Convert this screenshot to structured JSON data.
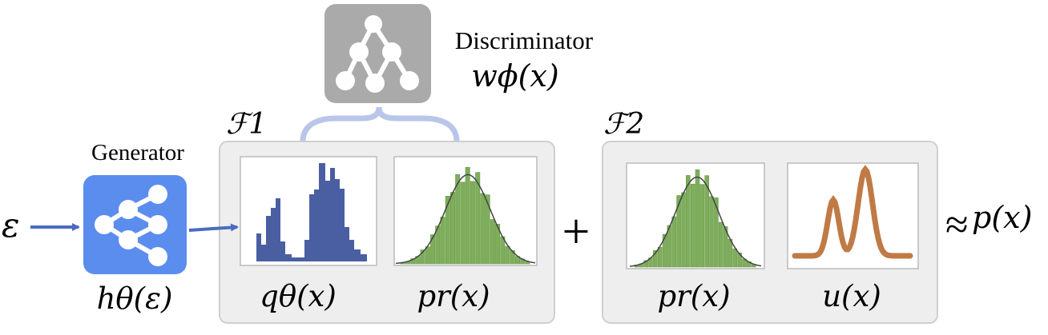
{
  "generator": {
    "title": "Generator",
    "output_label": "hθ(ε)",
    "icon": "neural-network-icon",
    "color": "#5b8def"
  },
  "input": {
    "symbol": "ε"
  },
  "discriminator": {
    "title": "Discriminator",
    "function_label": "wϕ(x)",
    "icon": "neural-network-icon",
    "color": "#aaaaaa",
    "brace_color": "#b9c6ea"
  },
  "family_1": {
    "label": "ℱ1",
    "plots": [
      {
        "label": "qθ(x)",
        "kind": "histogram",
        "color": "#4a5fa2"
      },
      {
        "label": "pr(x)",
        "kind": "histogram-with-density",
        "color": "#7eae5b"
      }
    ]
  },
  "operator": "+",
  "family_2": {
    "label": "ℱ2",
    "plots": [
      {
        "label": "pr(x)",
        "kind": "histogram-with-density",
        "color": "#7eae5b"
      },
      {
        "label": "u(x)",
        "kind": "curve",
        "color": "#c07a45"
      }
    ]
  },
  "approx": {
    "symbol": "≈",
    "target": "p(x)"
  }
}
